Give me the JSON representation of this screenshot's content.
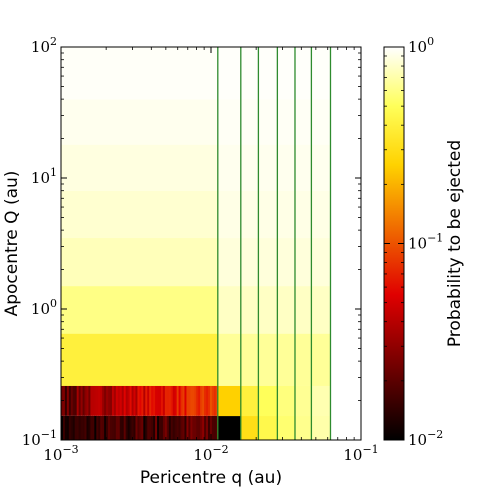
{
  "chart_data": {
    "type": "heatmap",
    "xlabel": "Pericentre q (au)",
    "ylabel": "Apocentre Q (au)",
    "colorbar_label": "Probability to be ejected",
    "x_scale": "log",
    "y_scale": "log",
    "xlim": [
      0.001,
      0.1
    ],
    "ylim": [
      0.1,
      100
    ],
    "x_ticks": [
      {
        "value": 0.001,
        "base": "10",
        "exp": "−3"
      },
      {
        "value": 0.01,
        "base": "10",
        "exp": "−2"
      },
      {
        "value": 0.1,
        "base": "10",
        "exp": "−1"
      }
    ],
    "y_ticks": [
      {
        "value": 0.1,
        "base": "10",
        "exp": "−1"
      },
      {
        "value": 1,
        "base": "10",
        "exp": "0"
      },
      {
        "value": 10,
        "base": "10",
        "exp": "1"
      },
      {
        "value": 100,
        "base": "10",
        "exp": "2"
      }
    ],
    "colorbar": {
      "scale": "log",
      "range": [
        0.01,
        1
      ],
      "colormap": "hot",
      "ticks": [
        {
          "value": 0.01,
          "base": "10",
          "exp": "−2"
        },
        {
          "value": 0.1,
          "base": "10",
          "exp": "−1"
        },
        {
          "value": 1,
          "base": "10",
          "exp": "0"
        }
      ]
    },
    "vertical_lines": {
      "color": "#2e8b2e",
      "x": [
        0.0111,
        0.0158,
        0.0207,
        0.0277,
        0.0363,
        0.0467,
        0.0626
      ],
      "y_range": [
        0.1,
        100
      ]
    },
    "rows": [
      {
        "Q": [
          0.1,
          0.153
        ],
        "cells": [
          {
            "q": [
              0.001,
              0.0111
            ],
            "p": 0.01,
            "noise": true
          },
          {
            "q": [
              0.0111,
              0.0158
            ],
            "p": 0.01
          },
          {
            "q": [
              0.0158,
              0.0207
            ],
            "p": 0.3
          },
          {
            "q": [
              0.0207,
              0.0277
            ],
            "p": 0.45
          },
          {
            "q": [
              0.0277,
              0.0363
            ],
            "p": 0.55
          },
          {
            "q": [
              0.0363,
              0.0467
            ],
            "p": 0.62
          },
          {
            "q": [
              0.0467,
              0.0626
            ],
            "p": 0.7
          }
        ]
      },
      {
        "Q": [
          0.153,
          0.26
        ],
        "cells": [
          {
            "q": [
              0.001,
              0.0111
            ],
            "p": 0.02,
            "noise": true
          },
          {
            "q": [
              0.0111,
              0.0158
            ],
            "p": 0.25
          },
          {
            "q": [
              0.0158,
              0.0207
            ],
            "p": 0.4
          },
          {
            "q": [
              0.0207,
              0.0277
            ],
            "p": 0.5
          },
          {
            "q": [
              0.0277,
              0.0363
            ],
            "p": 0.58
          },
          {
            "q": [
              0.0363,
              0.0467
            ],
            "p": 0.64
          },
          {
            "q": [
              0.0467,
              0.0626
            ],
            "p": 0.72
          }
        ]
      },
      {
        "Q": [
          0.26,
          0.65
        ],
        "cells": [
          {
            "q": [
              0.001,
              0.0111
            ],
            "p": 0.4
          },
          {
            "q": [
              0.0111,
              0.0626
            ],
            "p": 0.65
          }
        ]
      },
      {
        "Q": [
          0.65,
          1.5
        ],
        "cells": [
          {
            "q": [
              0.001,
              0.0111
            ],
            "p": 0.6
          },
          {
            "q": [
              0.0111,
              0.0626
            ],
            "p": 0.78
          }
        ]
      },
      {
        "Q": [
          1.5,
          3.5
        ],
        "cells": [
          {
            "q": [
              0.001,
              0.0111
            ],
            "p": 0.75
          },
          {
            "q": [
              0.0111,
              0.0626
            ],
            "p": 0.86
          }
        ]
      },
      {
        "Q": [
          3.5,
          8
        ],
        "cells": [
          {
            "q": [
              0.001,
              0.0111
            ],
            "p": 0.82
          },
          {
            "q": [
              0.0111,
              0.0626
            ],
            "p": 0.9
          }
        ]
      },
      {
        "Q": [
          8,
          18
        ],
        "cells": [
          {
            "q": [
              0.001,
              0.0111
            ],
            "p": 0.88
          },
          {
            "q": [
              0.0111,
              0.0626
            ],
            "p": 0.93
          }
        ]
      },
      {
        "Q": [
          18,
          40
        ],
        "cells": [
          {
            "q": [
              0.001,
              0.0111
            ],
            "p": 0.93
          },
          {
            "q": [
              0.0111,
              0.0626
            ],
            "p": 0.96
          }
        ]
      },
      {
        "Q": [
          40,
          100
        ],
        "cells": [
          {
            "q": [
              0.001,
              0.0111
            ],
            "p": 0.97
          },
          {
            "q": [
              0.0111,
              0.0626
            ],
            "p": 0.98
          }
        ]
      }
    ]
  }
}
